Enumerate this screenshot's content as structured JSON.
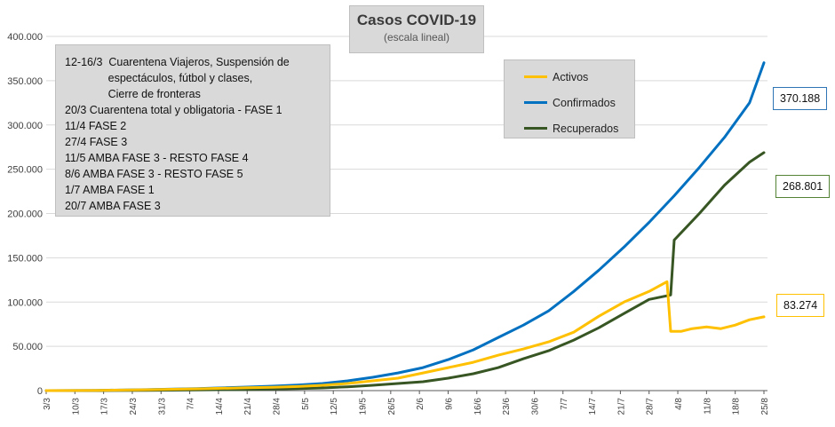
{
  "title": "Casos  COVID-19",
  "subtitle": "(escala lineal)",
  "notes": [
    "12-16/3  Cuarentena Viajeros, Suspensión de",
    "              espectáculos, fútbol y clases,",
    "              Cierre de fronteras",
    "20/3 Cuarentena total y obligatoria - FASE 1",
    "11/4 FASE 2",
    "27/4 FASE 3",
    "11/5 AMBA FASE 3 - RESTO FASE 4",
    "8/6 AMBA FASE 3 - RESTO FASE 5",
    "1/7 AMBA FASE 1",
    "20/7 AMBA FASE 3"
  ],
  "colors": {
    "activos": "#ffc000",
    "confirmados": "#0070c0",
    "recuperados": "#375623",
    "grid": "#d9d9d9",
    "axis": "#595959"
  },
  "legend": [
    {
      "name": "Activos",
      "color": "#ffc000"
    },
    {
      "name": "Confirmados",
      "color": "#0070c0"
    },
    {
      "name": "Recuperados",
      "color": "#375623"
    }
  ],
  "callouts": {
    "confirmados": {
      "label": "370.188",
      "color": "#2e75b6"
    },
    "recuperados": {
      "label": "268.801",
      "color": "#548235"
    },
    "activos": {
      "label": "83.274",
      "color": "#ffc000"
    }
  },
  "chart_data": {
    "type": "line",
    "title": "Casos  COVID-19",
    "subtitle": "(escala lineal)",
    "ylim": [
      0,
      400000
    ],
    "yticks": [
      0,
      50000,
      100000,
      150000,
      200000,
      250000,
      300000,
      350000,
      400000
    ],
    "ytick_labels": [
      "0",
      "50.000",
      "100.000",
      "150.000",
      "200.000",
      "250.000",
      "300.000",
      "350.000",
      "400.000"
    ],
    "x_range_days": [
      0,
      175
    ],
    "xtick_days": [
      0,
      7,
      14,
      21,
      28,
      35,
      42,
      49,
      56,
      63,
      70,
      77,
      84,
      91,
      98,
      105,
      112,
      119,
      126,
      133,
      140,
      147,
      154,
      161,
      168,
      175
    ],
    "xtick_labels": [
      "3/3",
      "10/3",
      "17/3",
      "24/3",
      "31/3",
      "7/4",
      "14/4",
      "21/4",
      "28/4",
      "5/5",
      "12/5",
      "19/5",
      "26/5",
      "2/6",
      "9/6",
      "16/6",
      "23/6",
      "30/6",
      "7/7",
      "14/7",
      "21/7",
      "28/7",
      "4/8",
      "11/8",
      "18/8",
      "25/8"
    ],
    "grid": true,
    "legend_position": "top-right",
    "series": [
      {
        "name": "Activos",
        "points": [
          [
            0,
            0
          ],
          [
            14,
            200
          ],
          [
            28,
            1000
          ],
          [
            42,
            2000
          ],
          [
            56,
            3200
          ],
          [
            63,
            3700
          ],
          [
            70,
            4600
          ],
          [
            77,
            6000
          ],
          [
            84,
            8000
          ],
          [
            91,
            11000
          ],
          [
            98,
            14000
          ],
          [
            105,
            20000
          ],
          [
            112,
            26000
          ],
          [
            119,
            32000
          ],
          [
            126,
            40000
          ],
          [
            133,
            47000
          ],
          [
            140,
            55000
          ],
          [
            147,
            66000
          ],
          [
            154,
            84000
          ],
          [
            161,
            100000
          ],
          [
            168,
            112000
          ],
          [
            173,
            123000
          ],
          [
            174,
            67000
          ],
          [
            177,
            67000
          ],
          [
            180,
            70000
          ],
          [
            184,
            72000
          ],
          [
            188,
            70000
          ],
          [
            192,
            74000
          ],
          [
            196,
            80000
          ],
          [
            200,
            83274
          ]
        ]
      },
      {
        "name": "Confirmados",
        "points": [
          [
            0,
            0
          ],
          [
            14,
            300
          ],
          [
            28,
            1100
          ],
          [
            42,
            2300
          ],
          [
            56,
            4000
          ],
          [
            63,
            5000
          ],
          [
            70,
            6300
          ],
          [
            77,
            8000
          ],
          [
            84,
            11000
          ],
          [
            91,
            15000
          ],
          [
            98,
            20000
          ],
          [
            105,
            26000
          ],
          [
            112,
            35000
          ],
          [
            119,
            46000
          ],
          [
            126,
            60000
          ],
          [
            133,
            74000
          ],
          [
            140,
            90000
          ],
          [
            147,
            112000
          ],
          [
            154,
            136000
          ],
          [
            161,
            162000
          ],
          [
            168,
            190000
          ],
          [
            175,
            220000
          ],
          [
            182,
            252000
          ],
          [
            189,
            286000
          ],
          [
            196,
            325000
          ],
          [
            200,
            370188
          ]
        ]
      },
      {
        "name": "Recuperados",
        "points": [
          [
            0,
            0
          ],
          [
            14,
            50
          ],
          [
            28,
            300
          ],
          [
            42,
            800
          ],
          [
            56,
            1300
          ],
          [
            63,
            1800
          ],
          [
            70,
            2300
          ],
          [
            77,
            3000
          ],
          [
            84,
            4300
          ],
          [
            91,
            6000
          ],
          [
            98,
            8000
          ],
          [
            105,
            10000
          ],
          [
            112,
            14000
          ],
          [
            119,
            19000
          ],
          [
            126,
            26000
          ],
          [
            133,
            36000
          ],
          [
            140,
            45000
          ],
          [
            147,
            57000
          ],
          [
            154,
            71000
          ],
          [
            161,
            87000
          ],
          [
            168,
            103000
          ],
          [
            174,
            108000
          ],
          [
            175,
            170000
          ],
          [
            182,
            200000
          ],
          [
            189,
            232000
          ],
          [
            196,
            258000
          ],
          [
            200,
            268801
          ]
        ]
      }
    ]
  }
}
